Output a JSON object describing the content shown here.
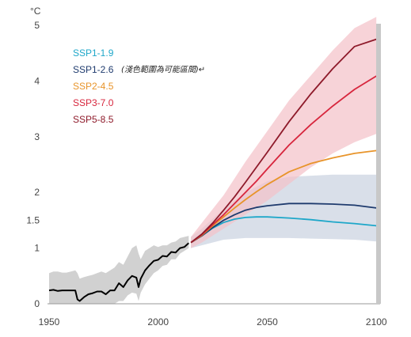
{
  "chart_data": {
    "type": "line",
    "unit_label": "°C",
    "note": "(淺色範圍為可能區間)↵",
    "x_ticks": [
      1950,
      2000,
      2050,
      2100
    ],
    "y_ticks": [
      {
        "value": 0,
        "label": "0"
      },
      {
        "value": 1,
        "label": "1"
      },
      {
        "value": 1.5,
        "label": "1.5"
      },
      {
        "value": 2,
        "label": "2"
      },
      {
        "value": 3,
        "label": "3"
      },
      {
        "value": 4,
        "label": "4"
      },
      {
        "value": 5,
        "label": "5"
      }
    ],
    "xlim": [
      1950,
      2101
    ],
    "ylim": [
      0,
      5
    ],
    "grid": false,
    "legend_position": "top-left",
    "historical": {
      "x": [
        1950,
        1952,
        1954,
        1956,
        1958,
        1960,
        1962,
        1963,
        1964,
        1966,
        1968,
        1970,
        1972,
        1974,
        1976,
        1978,
        1980,
        1982,
        1984,
        1986,
        1988,
        1990,
        1991,
        1992,
        1994,
        1996,
        1998,
        2000,
        2002,
        2004,
        2006,
        2008,
        2010,
        2012,
        2014
      ],
      "y": [
        0.24,
        0.25,
        0.23,
        0.24,
        0.24,
        0.24,
        0.24,
        0.08,
        0.05,
        0.12,
        0.17,
        0.19,
        0.22,
        0.22,
        0.17,
        0.24,
        0.24,
        0.37,
        0.3,
        0.42,
        0.5,
        0.47,
        0.3,
        0.45,
        0.6,
        0.69,
        0.77,
        0.79,
        0.86,
        0.85,
        0.93,
        0.92,
        1.0,
        1.02,
        1.09
      ],
      "range_low": [
        0.0,
        0.0,
        0.0,
        0.0,
        0.0,
        0.0,
        0.0,
        0.0,
        0.0,
        0.0,
        0.0,
        0.0,
        0.0,
        0.0,
        0.0,
        0.0,
        0.0,
        0.05,
        0.05,
        0.15,
        0.2,
        0.18,
        0.05,
        0.2,
        0.35,
        0.45,
        0.55,
        0.6,
        0.68,
        0.7,
        0.8,
        0.8,
        0.9,
        0.95,
        1.0
      ],
      "range_high": [
        0.55,
        0.58,
        0.58,
        0.56,
        0.56,
        0.58,
        0.6,
        0.55,
        0.45,
        0.48,
        0.5,
        0.52,
        0.55,
        0.58,
        0.55,
        0.6,
        0.65,
        0.75,
        0.7,
        0.85,
        1.0,
        1.05,
        0.9,
        0.8,
        0.95,
        1.0,
        1.05,
        1.02,
        1.05,
        1.05,
        1.1,
        1.12,
        1.18,
        1.2,
        1.22
      ],
      "color": "#000000",
      "range_color": "#cccccc"
    },
    "series": [
      {
        "name": "SSP1-1.9",
        "color": "#1ea7c9",
        "x": [
          2015,
          2020,
          2025,
          2030,
          2035,
          2040,
          2045,
          2050,
          2060,
          2070,
          2080,
          2090,
          2100
        ],
        "y": [
          1.1,
          1.22,
          1.36,
          1.46,
          1.52,
          1.55,
          1.56,
          1.56,
          1.54,
          1.51,
          1.47,
          1.44,
          1.4
        ]
      },
      {
        "name": "SSP1-2.6",
        "color": "#1f3b6e",
        "x": [
          2015,
          2020,
          2025,
          2030,
          2035,
          2040,
          2045,
          2050,
          2060,
          2070,
          2080,
          2090,
          2100
        ],
        "y": [
          1.1,
          1.22,
          1.37,
          1.5,
          1.6,
          1.68,
          1.73,
          1.76,
          1.8,
          1.8,
          1.79,
          1.77,
          1.72
        ]
      },
      {
        "name": "SSP2-4.5",
        "color": "#e8942a",
        "x": [
          2015,
          2020,
          2025,
          2030,
          2035,
          2040,
          2045,
          2050,
          2060,
          2070,
          2080,
          2090,
          2100
        ],
        "y": [
          1.1,
          1.23,
          1.4,
          1.56,
          1.72,
          1.87,
          2.01,
          2.14,
          2.37,
          2.52,
          2.62,
          2.7,
          2.75
        ]
      },
      {
        "name": "SSP3-7.0",
        "color": "#d7263d",
        "x": [
          2015,
          2020,
          2025,
          2030,
          2035,
          2040,
          2045,
          2050,
          2060,
          2070,
          2080,
          2090,
          2100
        ],
        "y": [
          1.1,
          1.24,
          1.42,
          1.6,
          1.8,
          2.0,
          2.2,
          2.42,
          2.85,
          3.22,
          3.55,
          3.85,
          4.09
        ]
      },
      {
        "name": "SSP5-8.5",
        "color": "#8e1a2a",
        "x": [
          2015,
          2020,
          2025,
          2030,
          2035,
          2040,
          2045,
          2050,
          2060,
          2070,
          2080,
          2090,
          2100
        ],
        "y": [
          1.1,
          1.25,
          1.45,
          1.68,
          1.92,
          2.18,
          2.45,
          2.72,
          3.27,
          3.77,
          4.22,
          4.62,
          4.75
        ]
      }
    ],
    "ranges": [
      {
        "name": "SSP1-2.6",
        "color": "#c9d2df",
        "x": [
          2015,
          2020,
          2030,
          2040,
          2050,
          2060,
          2070,
          2080,
          2090,
          2100
        ],
        "low": [
          1.0,
          1.05,
          1.15,
          1.18,
          1.18,
          1.18,
          1.17,
          1.16,
          1.15,
          1.12
        ],
        "high": [
          1.2,
          1.35,
          1.7,
          2.0,
          2.2,
          2.28,
          2.3,
          2.32,
          2.32,
          2.32
        ]
      },
      {
        "name": "SSP3-7.0",
        "color": "#f4c1c8",
        "x": [
          2015,
          2020,
          2030,
          2040,
          2050,
          2060,
          2070,
          2080,
          2090,
          2100
        ],
        "low": [
          1.0,
          1.1,
          1.35,
          1.6,
          1.85,
          2.15,
          2.45,
          2.7,
          2.9,
          3.05
        ],
        "high": [
          1.2,
          1.45,
          1.95,
          2.55,
          3.1,
          3.65,
          4.1,
          4.55,
          4.95,
          5.15
        ]
      }
    ]
  }
}
